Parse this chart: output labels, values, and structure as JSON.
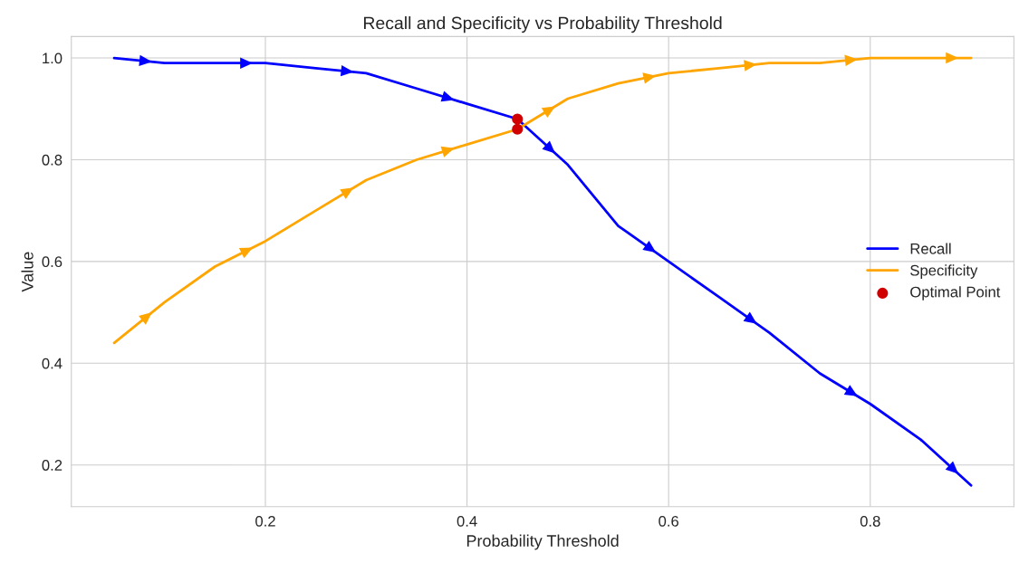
{
  "chart_data": {
    "type": "line",
    "title": "Recall and Specificity vs Probability Threshold",
    "xlabel": "Probability Threshold",
    "ylabel": "Value",
    "x": [
      0.05,
      0.1,
      0.15,
      0.2,
      0.25,
      0.3,
      0.35,
      0.4,
      0.45,
      0.5,
      0.55,
      0.6,
      0.65,
      0.7,
      0.75,
      0.8,
      0.85,
      0.9
    ],
    "series": [
      {
        "name": "Recall",
        "color": "#0000ff",
        "values": [
          1.0,
          0.99,
          0.99,
          0.99,
          0.98,
          0.97,
          0.94,
          0.91,
          0.88,
          0.79,
          0.67,
          0.6,
          0.53,
          0.46,
          0.38,
          0.32,
          0.25,
          0.16
        ]
      },
      {
        "name": "Specificity",
        "color": "#ffa500",
        "values": [
          0.44,
          0.52,
          0.59,
          0.64,
          0.7,
          0.76,
          0.8,
          0.83,
          0.86,
          0.92,
          0.95,
          0.97,
          0.98,
          0.99,
          0.99,
          1.0,
          1.0,
          1.0
        ]
      },
      {
        "name": "Optimal Point",
        "type": "scatter",
        "color": "#d00000",
        "x": [
          0.45,
          0.45
        ],
        "values": [
          0.88,
          0.86
        ]
      }
    ],
    "xlim": [
      0.0075,
      0.9425
    ],
    "ylim": [
      0.118,
      1.042
    ],
    "xticks": [
      0.2,
      0.4,
      0.6,
      0.8
    ],
    "yticks": [
      0.2,
      0.4,
      0.6,
      0.8,
      {
        "value": 1.0,
        "label": "1.0"
      }
    ],
    "grid": true,
    "legend": "right"
  }
}
